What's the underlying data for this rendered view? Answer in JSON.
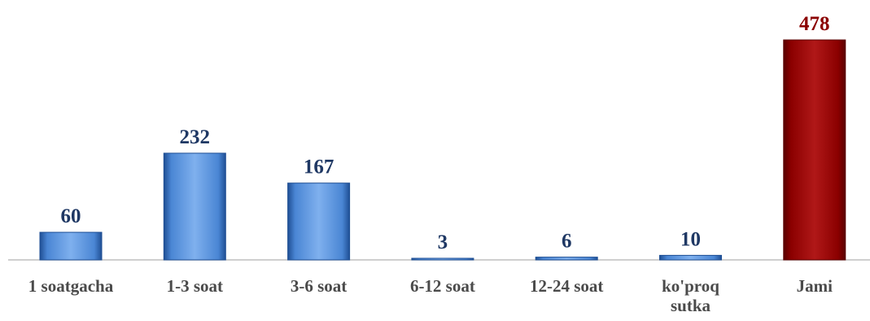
{
  "chart_data": {
    "type": "bar",
    "title": "",
    "xlabel": "",
    "ylabel": "",
    "ylim": [
      0,
      478
    ],
    "grid": false,
    "legend": "none",
    "categories": [
      [
        "1 soatgacha"
      ],
      [
        "1-3 soat"
      ],
      [
        "3-6 soat"
      ],
      [
        "6-12 soat"
      ],
      [
        "12-24 soat"
      ],
      [
        "ko'proq",
        "sutka"
      ],
      [
        "Jami"
      ]
    ],
    "values": [
      60,
      232,
      167,
      3,
      6,
      10,
      478
    ],
    "value_labels": [
      "60",
      "232",
      "167",
      "3",
      "6",
      "10",
      "478"
    ],
    "highlight_index": 6,
    "colors": {
      "bar": "#4a86d4",
      "bar_dark": "#1f4f94",
      "bar_light": "#7fb0ee",
      "highlight": "#8b0000",
      "highlight_dark": "#5a0000",
      "highlight_light": "#b01818",
      "value_text": "#1f3864",
      "highlight_text": "#8b0000",
      "axis": "#bfbfbf",
      "category_text": "#4a4a4a"
    }
  }
}
